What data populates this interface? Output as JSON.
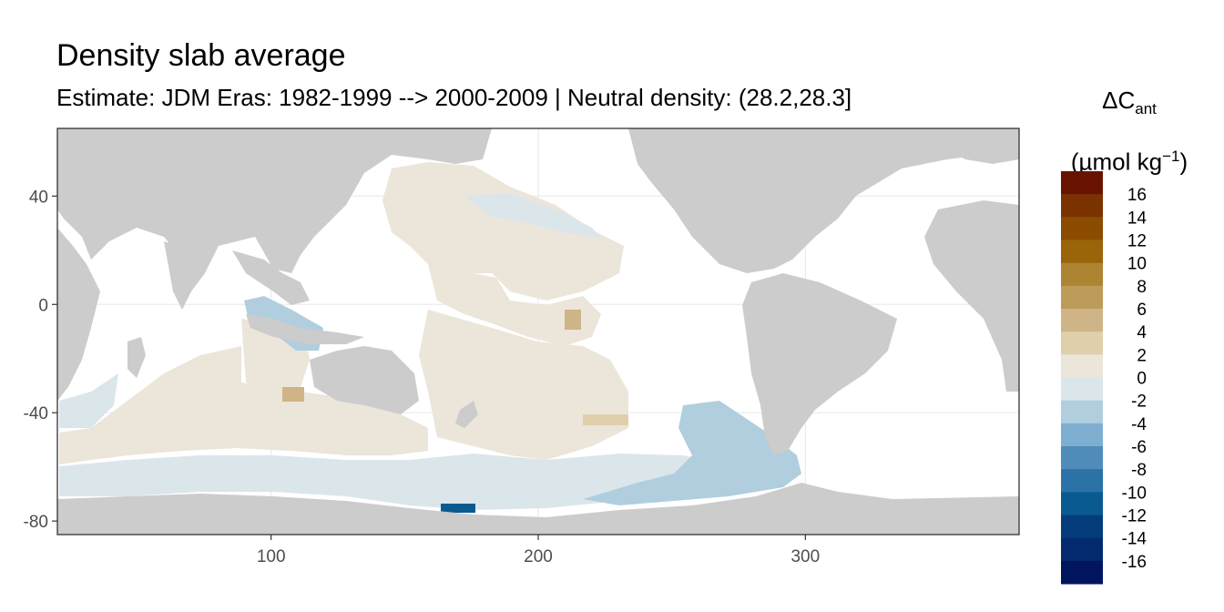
{
  "title": "Density slab average",
  "subtitle": "Estimate: JDM Eras: 1982-1999 --> 2000-2009 | Neutral density: (28.2,28.3]",
  "legend": {
    "title_main": "ΔC",
    "title_sub": "ant",
    "unit_prefix": "(µmol kg",
    "unit_sup": "−1",
    "unit_suffix": ")",
    "labels": [
      "16",
      "14",
      "12",
      "10",
      "8",
      "6",
      "4",
      "2",
      "0",
      "-2",
      "-4",
      "-6",
      "-8",
      "-10",
      "-12",
      "-14",
      "-16"
    ],
    "colors": [
      "#671300",
      "#7a3200",
      "#8c4c00",
      "#9a6408",
      "#ad8431",
      "#bd9c5a",
      "#cfb487",
      "#e0cfab",
      "#ebe5da",
      "#dbe6eb",
      "#b1cedf",
      "#7fafd0",
      "#4f8cba",
      "#2b73a6",
      "#0a5a92",
      "#053d7c",
      "#032a6e",
      "#01155f"
    ],
    "colors_note_order": "top to bottom"
  },
  "chart_data": {
    "type": "map",
    "x_ticks": [
      100,
      200,
      300
    ],
    "y_ticks": [
      40,
      0,
      -40,
      -80
    ],
    "x_tick_labels": [
      "100",
      "200",
      "300"
    ],
    "y_tick_labels": [
      "40",
      "0",
      "-40",
      "-80"
    ],
    "xlim": [
      20,
      380
    ],
    "ylim": [
      -85,
      65
    ],
    "grid": true,
    "land_color": "#cccccc",
    "ocean_background": "#ffffff",
    "regions": [
      {
        "name": "north-pacific-gyre",
        "value": 1
      },
      {
        "name": "south-pacific",
        "value": 1
      },
      {
        "name": "southern-indian",
        "value": 1
      },
      {
        "name": "southern-ocean-band",
        "value": -1
      },
      {
        "name": "south-east-pacific",
        "value": -3
      },
      {
        "name": "ross-sea-patch",
        "value": -11
      },
      {
        "name": "indonesian-seas",
        "value": -2
      }
    ]
  }
}
